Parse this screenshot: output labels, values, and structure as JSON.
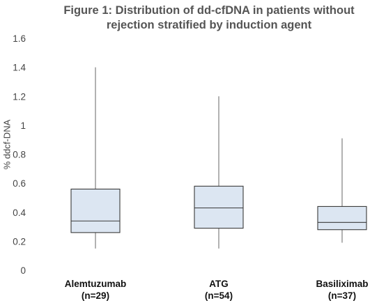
{
  "chart_data": {
    "type": "box",
    "title_line1": "Figure 1:  Distribution of dd-cfDNA in patients without",
    "title_line2": "rejection stratified by induction agent",
    "ylabel": "% ddcf-DNA",
    "xlabel": "",
    "ylim": [
      0,
      1.6
    ],
    "yticks": [
      "0",
      "0.2",
      "0.4",
      "0.6",
      "0.8",
      "1",
      "1.2",
      "1.4",
      "1.6"
    ],
    "grid": false,
    "categories": [
      {
        "name": "Alemtuzumab",
        "n": "(n=29)"
      },
      {
        "name": "ATG",
        "n": "(n=54)"
      },
      {
        "name": "Basiliximab",
        "n": "(n=37)"
      }
    ],
    "boxes": [
      {
        "min": 0.15,
        "q1": 0.26,
        "median": 0.34,
        "q3": 0.56,
        "max": 1.4
      },
      {
        "min": 0.15,
        "q1": 0.29,
        "median": 0.43,
        "q3": 0.58,
        "max": 1.2
      },
      {
        "min": 0.19,
        "q1": 0.28,
        "median": 0.33,
        "q3": 0.44,
        "max": 0.91
      }
    ],
    "colors": {
      "box_fill": "#dce6f2",
      "box_stroke": "#3a3a3a",
      "whisker": "#7f7f7f"
    }
  }
}
